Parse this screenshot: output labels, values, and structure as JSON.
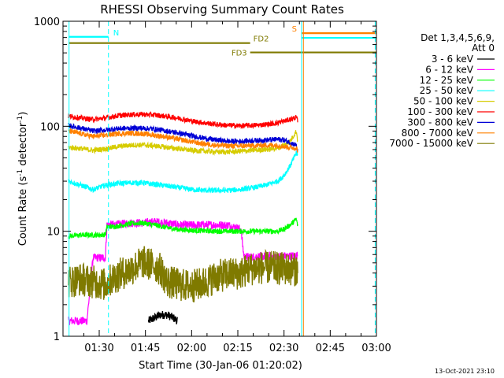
{
  "chart_data": {
    "type": "line",
    "title": "RHESSI Observing Summary Count Rates",
    "xlabel": "Start Time (30-Jan-06 01:20:02)",
    "ylabel": "Count Rate (s⁻¹ detector⁻¹)",
    "ylabel_parts": {
      "main": "Count Rate (s",
      "sup1": "-1",
      "mid": " detector",
      "sup2": "-1",
      "end": ")"
    },
    "yscale": "log",
    "ylim": [
      1,
      1000
    ],
    "xlim_minutes": [
      20.03,
      180
    ],
    "x_unit": "minutes after 01:00 UT",
    "x_ticks": [
      {
        "label": "01:30",
        "min": 30
      },
      {
        "label": "01:45",
        "min": 45
      },
      {
        "label": "02:00",
        "min": 60
      },
      {
        "label": "02:15",
        "min": 75
      },
      {
        "label": "02:30",
        "min": 90
      },
      {
        "label": "02:45",
        "min": 105
      },
      {
        "label": "03:00",
        "min": 120
      }
    ],
    "y_ticks": [
      {
        "label": "1",
        "value": 1
      },
      {
        "label": "10",
        "value": 10
      },
      {
        "label": "100",
        "value": 100
      },
      {
        "label": "1000",
        "value": 1000
      }
    ],
    "legend_header": [
      "Det 1,3,4,5,6,9,",
      "Att 0"
    ],
    "legend_placement": "right",
    "series": [
      {
        "name": "3 - 6 keV",
        "color": "#000000",
        "points": [
          [
            46.0,
            1.4
          ],
          [
            48.0,
            1.5
          ],
          [
            50.0,
            1.6
          ],
          [
            52.0,
            1.6
          ],
          [
            54.0,
            1.5
          ],
          [
            55.5,
            1.4
          ]
        ]
      },
      {
        "name": "6 - 12 keV",
        "color": "#ff00ff",
        "points": [
          [
            20.03,
            1.4
          ],
          [
            22,
            1.4
          ],
          [
            24,
            1.4
          ],
          [
            26,
            1.4
          ],
          [
            28,
            5.6
          ],
          [
            30,
            5.6
          ],
          [
            32,
            5.6
          ],
          [
            32.5,
            11.5
          ],
          [
            36,
            11.6
          ],
          [
            40,
            12.0
          ],
          [
            44,
            12.0
          ],
          [
            48,
            12.3
          ],
          [
            52,
            12.0
          ],
          [
            56,
            11.5
          ],
          [
            60,
            11.4
          ],
          [
            64,
            11.5
          ],
          [
            68,
            11.5
          ],
          [
            72,
            11.4
          ],
          [
            76,
            10.5
          ],
          [
            77,
            5.7
          ],
          [
            80,
            5.7
          ],
          [
            84,
            5.8
          ],
          [
            88,
            5.8
          ],
          [
            92,
            5.8
          ],
          [
            94.5,
            5.9
          ]
        ]
      },
      {
        "name": "12 - 25 keV",
        "color": "#00ff00",
        "points": [
          [
            20.03,
            9.0
          ],
          [
            24,
            9.2
          ],
          [
            28,
            9.2
          ],
          [
            32,
            9.3
          ],
          [
            32.5,
            11.0
          ],
          [
            36,
            11.2
          ],
          [
            40,
            11.8
          ],
          [
            44,
            12.0
          ],
          [
            48,
            11.5
          ],
          [
            52,
            10.8
          ],
          [
            56,
            10.4
          ],
          [
            60,
            10.2
          ],
          [
            64,
            10.1
          ],
          [
            68,
            10.0
          ],
          [
            72,
            10.0
          ],
          [
            76,
            10.0
          ],
          [
            80,
            10.0
          ],
          [
            84,
            10.0
          ],
          [
            88,
            10.0
          ],
          [
            90,
            10.5
          ],
          [
            92,
            11.5
          ],
          [
            94,
            13.0
          ],
          [
            94.5,
            11.0
          ]
        ]
      },
      {
        "name": "25 - 50 keV",
        "color": "#00ffff",
        "points": [
          [
            20.03,
            30.0
          ],
          [
            24,
            27.5
          ],
          [
            28,
            25.0
          ],
          [
            32,
            27.5
          ],
          [
            36,
            28.5
          ],
          [
            40,
            29.0
          ],
          [
            44,
            29.0
          ],
          [
            48,
            28.0
          ],
          [
            52,
            27.0
          ],
          [
            56,
            26.0
          ],
          [
            60,
            25.0
          ],
          [
            64,
            24.5
          ],
          [
            68,
            24.5
          ],
          [
            72,
            24.5
          ],
          [
            76,
            25.0
          ],
          [
            80,
            26.0
          ],
          [
            84,
            27.5
          ],
          [
            88,
            30.0
          ],
          [
            90,
            34.0
          ],
          [
            92,
            42.0
          ],
          [
            94,
            56.0
          ],
          [
            94.5,
            52.0
          ]
        ]
      },
      {
        "name": "50 - 100 keV",
        "color": "#d6cc00",
        "points": [
          [
            20.03,
            63.0
          ],
          [
            24,
            61.5
          ],
          [
            28,
            59.0
          ],
          [
            32,
            61.0
          ],
          [
            36,
            64.0
          ],
          [
            40,
            66.0
          ],
          [
            44,
            66.5
          ],
          [
            48,
            65.0
          ],
          [
            52,
            63.0
          ],
          [
            56,
            61.0
          ],
          [
            60,
            59.0
          ],
          [
            64,
            58.0
          ],
          [
            68,
            57.0
          ],
          [
            72,
            57.0
          ],
          [
            76,
            58.0
          ],
          [
            80,
            59.0
          ],
          [
            84,
            60.0
          ],
          [
            88,
            62.0
          ],
          [
            90,
            66.0
          ],
          [
            92,
            72.0
          ],
          [
            94,
            90.0
          ],
          [
            94.5,
            70.0
          ]
        ]
      },
      {
        "name": "100 - 300 keV",
        "color": "#ff0000",
        "points": [
          [
            20.03,
            125.0
          ],
          [
            24,
            120.0
          ],
          [
            28,
            116.0
          ],
          [
            32,
            120.0
          ],
          [
            36,
            126.0
          ],
          [
            40,
            129.0
          ],
          [
            44,
            130.0
          ],
          [
            48,
            128.0
          ],
          [
            52,
            124.0
          ],
          [
            56,
            119.0
          ],
          [
            60,
            112.0
          ],
          [
            64,
            108.0
          ],
          [
            68,
            104.0
          ],
          [
            72,
            102.0
          ],
          [
            76,
            101.0
          ],
          [
            80,
            102.0
          ],
          [
            84,
            104.0
          ],
          [
            88,
            108.0
          ],
          [
            90,
            112.0
          ],
          [
            92,
            116.0
          ],
          [
            94,
            122.0
          ],
          [
            94.5,
            110.0
          ]
        ]
      },
      {
        "name": "300 - 800 keV",
        "color": "#0000d6",
        "points": [
          [
            20.03,
            102.0
          ],
          [
            24,
            96.0
          ],
          [
            28,
            90.0
          ],
          [
            32,
            92.0
          ],
          [
            36,
            95.0
          ],
          [
            40,
            96.0
          ],
          [
            44,
            96.0
          ],
          [
            48,
            94.0
          ],
          [
            52,
            90.0
          ],
          [
            56,
            86.0
          ],
          [
            60,
            81.0
          ],
          [
            64,
            77.0
          ],
          [
            68,
            74.0
          ],
          [
            72,
            72.0
          ],
          [
            76,
            72.0
          ],
          [
            80,
            73.0
          ],
          [
            84,
            74.0
          ],
          [
            88,
            75.0
          ],
          [
            90,
            74.0
          ],
          [
            92,
            70.0
          ],
          [
            94,
            66.0
          ],
          [
            94.5,
            55.0
          ]
        ]
      },
      {
        "name": "800 - 7000 keV",
        "color": "#ff8000",
        "points": [
          [
            20.03,
            90.0
          ],
          [
            24,
            85.0
          ],
          [
            28,
            80.0
          ],
          [
            32,
            82.0
          ],
          [
            36,
            85.0
          ],
          [
            40,
            86.0
          ],
          [
            44,
            85.0
          ],
          [
            48,
            82.0
          ],
          [
            52,
            79.0
          ],
          [
            56,
            75.0
          ],
          [
            60,
            71.0
          ],
          [
            64,
            68.0
          ],
          [
            68,
            66.0
          ],
          [
            72,
            65.0
          ],
          [
            76,
            65.0
          ],
          [
            80,
            65.5
          ],
          [
            84,
            66.0
          ],
          [
            88,
            66.0
          ],
          [
            90,
            64.0
          ],
          [
            92,
            63.0
          ],
          [
            94,
            62.0
          ],
          [
            94.5,
            58.0
          ]
        ]
      },
      {
        "name": "7000 - 15000 keV",
        "color": "#7f7a00",
        "points": [
          [
            20.03,
            3.3
          ],
          [
            24,
            3.5
          ],
          [
            28,
            3.3
          ],
          [
            32,
            3.1
          ],
          [
            34,
            3.5
          ],
          [
            36,
            3.8
          ],
          [
            40,
            4.3
          ],
          [
            44,
            5.1
          ],
          [
            48,
            4.7
          ],
          [
            50,
            4.3
          ],
          [
            52,
            3.3
          ],
          [
            56,
            3.1
          ],
          [
            60,
            3.0
          ],
          [
            64,
            3.2
          ],
          [
            68,
            3.7
          ],
          [
            72,
            3.9
          ],
          [
            76,
            4.0
          ],
          [
            78,
            4.3
          ],
          [
            82,
            4.5
          ],
          [
            86,
            4.5
          ],
          [
            90,
            4.4
          ],
          [
            94.5,
            4.3
          ]
        ]
      }
    ],
    "flag_lines": [
      {
        "label": "N",
        "color": "#00ffff",
        "y": 711,
        "x_start": 20.03,
        "x_end": 33.0
      },
      {
        "label": "FD2",
        "color": "#7f7a00",
        "y": 620,
        "x_start": 20.03,
        "x_end": 79.0
      },
      {
        "label": "FD3",
        "color": "#7f7a00",
        "y": 505,
        "x_start": 79.0,
        "x_end": 120.0
      },
      {
        "label": "S",
        "color": "#ff8000",
        "y": 770,
        "x_start": 95.7,
        "x_end": 120.0
      },
      {
        "label": "",
        "color": "#00ffff",
        "y": 695,
        "x_start": 95.7,
        "x_end": 120.0
      }
    ],
    "vertical_markers": [
      {
        "color": "#00ffff",
        "min": 20.2,
        "style": "solid"
      },
      {
        "color": "#00ffff",
        "min": 33.0,
        "style": "dashed"
      },
      {
        "color": "#00ffff",
        "min": 95.7,
        "style": "solid"
      },
      {
        "color": "#ff8000",
        "min": 96.3,
        "style": "solid"
      },
      {
        "color": "#00ffff",
        "min": 119.6,
        "style": "dashed"
      },
      {
        "color": "#ff8000",
        "min": 120.0,
        "style": "solid"
      }
    ]
  },
  "footer": {
    "timestamp": "13-Oct-2021 23:10"
  }
}
